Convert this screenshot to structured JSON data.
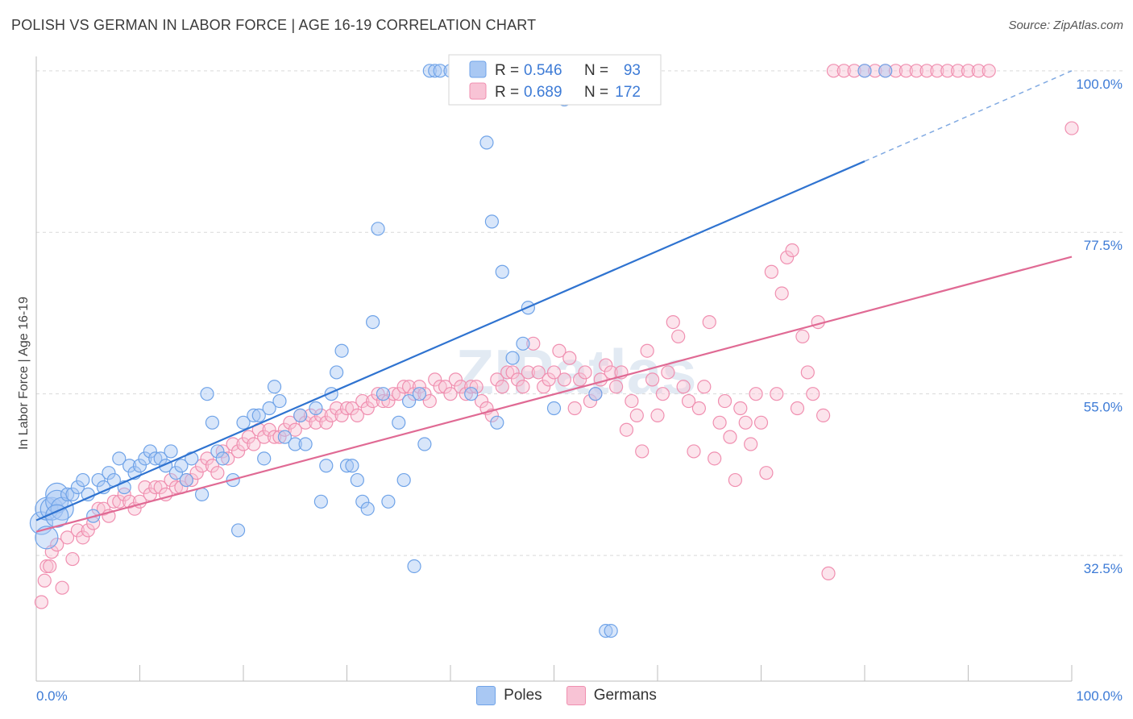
{
  "title": "POLISH VS GERMAN IN LABOR FORCE | AGE 16-19 CORRELATION CHART",
  "source": "Source: ZipAtlas.com",
  "colors": {
    "poles": "#6fa3e8",
    "poles_line": "#2f73d0",
    "germans": "#f08fb0",
    "germans_line": "#e06a94",
    "tick_text": "#3d7bd6"
  },
  "chart_data": {
    "type": "scatter",
    "ylabel": "In Labor Force | Age 16-19",
    "xlabel": "",
    "xlim": [
      0,
      100
    ],
    "ylim": [
      15,
      102
    ],
    "x_tick_labels": [
      "0.0%",
      "100.0%"
    ],
    "y_ticks": [
      32.5,
      55.0,
      77.5,
      100.0
    ],
    "y_tick_labels": [
      "32.5%",
      "55.0%",
      "77.5%",
      "100.0%"
    ],
    "legend_box": [
      {
        "series": "Poles",
        "r_label": "R =",
        "r_value": "0.546",
        "n_label": "N =",
        "n_value": "93"
      },
      {
        "series": "Germans",
        "r_label": "R =",
        "r_value": "0.689",
        "n_label": "N =",
        "n_value": "172"
      }
    ],
    "watermark": "ZIPatlas",
    "series": [
      {
        "name": "Poles",
        "trend": {
          "x": [
            0,
            80
          ],
          "y": [
            37.4,
            87.4
          ],
          "dashed_to": [
            100,
            100
          ]
        },
        "points": [
          [
            0.5,
            37
          ],
          [
            1,
            39
          ],
          [
            1.5,
            39
          ],
          [
            2,
            41
          ],
          [
            2,
            40
          ],
          [
            2.5,
            39
          ],
          [
            3,
            41
          ],
          [
            3.5,
            41
          ],
          [
            4,
            42
          ],
          [
            4.5,
            43
          ],
          [
            5,
            41
          ],
          [
            5.5,
            38
          ],
          [
            6,
            43
          ],
          [
            6.5,
            42
          ],
          [
            7,
            44
          ],
          [
            7.5,
            43
          ],
          [
            8,
            46
          ],
          [
            8.5,
            42
          ],
          [
            9,
            45
          ],
          [
            9.5,
            44
          ],
          [
            10,
            45
          ],
          [
            10.5,
            46
          ],
          [
            11,
            47
          ],
          [
            11.5,
            46
          ],
          [
            12,
            46
          ],
          [
            12.5,
            45
          ],
          [
            13,
            47
          ],
          [
            13.5,
            44
          ],
          [
            14,
            45
          ],
          [
            14.5,
            43
          ],
          [
            15,
            46
          ],
          [
            16,
            41
          ],
          [
            16.5,
            55
          ],
          [
            17,
            51
          ],
          [
            17.5,
            47
          ],
          [
            18,
            46
          ],
          [
            19,
            43
          ],
          [
            19.5,
            36
          ],
          [
            20,
            51
          ],
          [
            21,
            52
          ],
          [
            21.5,
            52
          ],
          [
            22,
            46
          ],
          [
            22.5,
            53
          ],
          [
            23,
            56
          ],
          [
            23.5,
            54
          ],
          [
            24,
            49
          ],
          [
            25,
            48
          ],
          [
            25.5,
            52
          ],
          [
            26,
            48
          ],
          [
            27,
            53
          ],
          [
            27.5,
            40
          ],
          [
            28,
            45
          ],
          [
            28.5,
            55
          ],
          [
            29,
            58
          ],
          [
            29.5,
            61
          ],
          [
            30,
            45
          ],
          [
            30.5,
            45
          ],
          [
            31,
            43
          ],
          [
            31.5,
            40
          ],
          [
            32,
            39
          ],
          [
            32.5,
            65
          ],
          [
            33,
            78
          ],
          [
            33.5,
            55
          ],
          [
            34,
            40
          ],
          [
            35,
            51
          ],
          [
            35.5,
            43
          ],
          [
            36,
            54
          ],
          [
            36.5,
            31
          ],
          [
            37,
            55
          ],
          [
            37.5,
            48
          ],
          [
            38,
            100
          ],
          [
            38.5,
            100
          ],
          [
            39,
            100
          ],
          [
            40,
            100
          ],
          [
            40.5,
            100
          ],
          [
            42,
            55
          ],
          [
            43,
            100
          ],
          [
            43.5,
            90
          ],
          [
            44,
            79
          ],
          [
            44.5,
            51
          ],
          [
            45,
            72
          ],
          [
            46,
            60
          ],
          [
            47,
            62
          ],
          [
            47.5,
            67
          ],
          [
            50,
            53
          ],
          [
            51,
            96
          ],
          [
            54,
            55
          ],
          [
            55,
            22
          ],
          [
            55.5,
            22
          ],
          [
            80,
            100
          ],
          [
            82,
            100
          ],
          [
            1,
            35
          ],
          [
            2,
            38
          ]
        ]
      },
      {
        "name": "Germans",
        "trend": {
          "x": [
            0,
            100
          ],
          "y": [
            35.8,
            74.1
          ]
        },
        "points": [
          [
            0.5,
            26
          ],
          [
            0.8,
            29
          ],
          [
            1,
            31
          ],
          [
            1.3,
            31
          ],
          [
            1.5,
            33
          ],
          [
            2,
            34
          ],
          [
            2.5,
            28
          ],
          [
            3,
            35
          ],
          [
            3.5,
            32
          ],
          [
            4,
            36
          ],
          [
            4.5,
            35
          ],
          [
            5,
            36
          ],
          [
            5.5,
            37
          ],
          [
            6,
            39
          ],
          [
            6.5,
            39
          ],
          [
            7,
            38
          ],
          [
            7.5,
            40
          ],
          [
            8,
            40
          ],
          [
            8.5,
            41
          ],
          [
            9,
            40
          ],
          [
            9.5,
            39
          ],
          [
            10,
            40
          ],
          [
            10.5,
            42
          ],
          [
            11,
            41
          ],
          [
            11.5,
            42
          ],
          [
            12,
            42
          ],
          [
            12.5,
            41
          ],
          [
            13,
            43
          ],
          [
            13.5,
            42
          ],
          [
            14,
            42
          ],
          [
            14.5,
            43
          ],
          [
            15,
            43
          ],
          [
            15.5,
            44
          ],
          [
            16,
            45
          ],
          [
            16.5,
            46
          ],
          [
            17,
            45
          ],
          [
            17.5,
            44
          ],
          [
            18,
            47
          ],
          [
            18.5,
            46
          ],
          [
            19,
            48
          ],
          [
            19.5,
            47
          ],
          [
            20,
            48
          ],
          [
            20.5,
            49
          ],
          [
            21,
            48
          ],
          [
            21.5,
            50
          ],
          [
            22,
            49
          ],
          [
            22.5,
            50
          ],
          [
            23,
            49
          ],
          [
            23.5,
            49
          ],
          [
            24,
            50
          ],
          [
            24.5,
            51
          ],
          [
            25,
            50
          ],
          [
            25.5,
            52
          ],
          [
            26,
            51
          ],
          [
            26.5,
            52
          ],
          [
            27,
            51
          ],
          [
            27.5,
            52
          ],
          [
            28,
            51
          ],
          [
            28.5,
            52
          ],
          [
            29,
            53
          ],
          [
            29.5,
            52
          ],
          [
            30,
            53
          ],
          [
            30.5,
            53
          ],
          [
            31,
            52
          ],
          [
            31.5,
            54
          ],
          [
            32,
            53
          ],
          [
            32.5,
            54
          ],
          [
            33,
            55
          ],
          [
            33.5,
            54
          ],
          [
            34,
            54
          ],
          [
            34.5,
            55
          ],
          [
            35,
            55
          ],
          [
            35.5,
            56
          ],
          [
            36,
            56
          ],
          [
            36.5,
            55
          ],
          [
            37,
            56
          ],
          [
            37.5,
            55
          ],
          [
            38,
            54
          ],
          [
            38.5,
            57
          ],
          [
            39,
            56
          ],
          [
            39.5,
            56
          ],
          [
            40,
            55
          ],
          [
            40.5,
            57
          ],
          [
            41,
            56
          ],
          [
            41.5,
            55
          ],
          [
            42,
            56
          ],
          [
            42.5,
            56
          ],
          [
            43,
            54
          ],
          [
            43.5,
            53
          ],
          [
            44,
            52
          ],
          [
            44.5,
            57
          ],
          [
            45,
            56
          ],
          [
            45.5,
            58
          ],
          [
            46,
            58
          ],
          [
            46.5,
            57
          ],
          [
            47,
            56
          ],
          [
            47.5,
            58
          ],
          [
            48,
            62
          ],
          [
            48.5,
            58
          ],
          [
            49,
            56
          ],
          [
            49.5,
            57
          ],
          [
            50,
            58
          ],
          [
            50.5,
            61
          ],
          [
            51,
            57
          ],
          [
            51.5,
            60
          ],
          [
            52,
            53
          ],
          [
            52.5,
            57
          ],
          [
            53,
            58
          ],
          [
            53.5,
            54
          ],
          [
            54,
            55
          ],
          [
            54.5,
            57
          ],
          [
            55,
            59
          ],
          [
            55.5,
            58
          ],
          [
            56,
            56
          ],
          [
            56.5,
            58
          ],
          [
            57,
            50
          ],
          [
            57.5,
            54
          ],
          [
            58,
            52
          ],
          [
            58.5,
            47
          ],
          [
            59,
            61
          ],
          [
            59.5,
            57
          ],
          [
            60,
            52
          ],
          [
            60.5,
            55
          ],
          [
            61,
            58
          ],
          [
            61.5,
            65
          ],
          [
            62,
            63
          ],
          [
            62.5,
            56
          ],
          [
            63,
            54
          ],
          [
            63.5,
            47
          ],
          [
            64,
            53
          ],
          [
            64.5,
            56
          ],
          [
            65,
            65
          ],
          [
            65.5,
            46
          ],
          [
            66,
            51
          ],
          [
            66.5,
            54
          ],
          [
            67,
            49
          ],
          [
            67.5,
            43
          ],
          [
            68,
            53
          ],
          [
            68.5,
            51
          ],
          [
            69,
            48
          ],
          [
            69.5,
            55
          ],
          [
            70,
            51
          ],
          [
            70.5,
            44
          ],
          [
            71,
            72
          ],
          [
            71.5,
            55
          ],
          [
            72,
            69
          ],
          [
            72.5,
            74
          ],
          [
            73,
            75
          ],
          [
            73.5,
            53
          ],
          [
            74,
            63
          ],
          [
            74.5,
            58
          ],
          [
            75,
            55
          ],
          [
            75.5,
            65
          ],
          [
            76,
            52
          ],
          [
            76.5,
            30
          ],
          [
            77,
            100
          ],
          [
            78,
            100
          ],
          [
            79,
            100
          ],
          [
            80,
            100
          ],
          [
            81,
            100
          ],
          [
            82,
            100
          ],
          [
            83,
            100
          ],
          [
            84,
            100
          ],
          [
            85,
            100
          ],
          [
            86,
            100
          ],
          [
            87,
            100
          ],
          [
            88,
            100
          ],
          [
            89,
            100
          ],
          [
            90,
            100
          ],
          [
            91,
            100
          ],
          [
            92,
            100
          ],
          [
            100,
            92
          ]
        ]
      }
    ]
  },
  "bottom_legend": [
    {
      "label": "Poles"
    },
    {
      "label": "Germans"
    }
  ]
}
